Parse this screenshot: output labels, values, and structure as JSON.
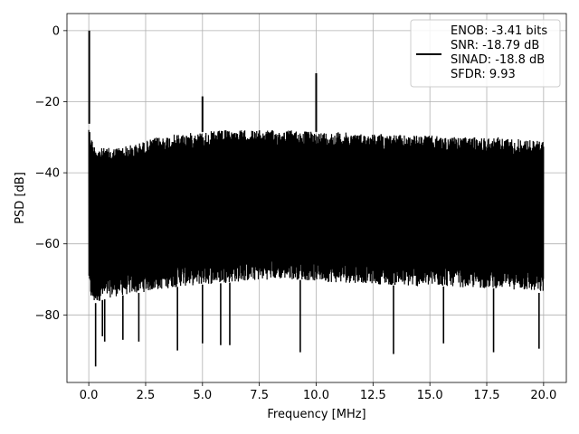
{
  "chart_data": {
    "type": "line",
    "title": "",
    "xlabel": "Frequency [MHz]",
    "ylabel": "PSD [dB]",
    "xlim": [
      -0.96,
      21.0
    ],
    "ylim": [
      -99.0,
      4.8
    ],
    "xticks": [
      0.0,
      2.5,
      5.0,
      7.5,
      10.0,
      12.5,
      15.0,
      17.5,
      20.0
    ],
    "xtick_labels": [
      "0.0",
      "2.5",
      "5.0",
      "7.5",
      "10.0",
      "12.5",
      "15.0",
      "17.5",
      "20.0"
    ],
    "yticks": [
      0,
      -20,
      -40,
      -60,
      -80
    ],
    "ytick_labels": [
      "0",
      "−20",
      "−40",
      "−60",
      "−80"
    ],
    "grid": true,
    "legend_position": "top-right",
    "series": [
      {
        "legend_lines": [
          "ENOB: -3.41 bits",
          "SNR: -18.79 dB",
          "SINAD: -18.8 dB",
          "SFDR: 9.93"
        ],
        "color": "#000000",
        "description": "dense noise floor",
        "envelope": {
          "x": [
            0.0,
            0.05,
            0.2,
            0.5,
            1.0,
            2.0,
            3.0,
            4.0,
            5.0,
            6.0,
            7.0,
            8.0,
            9.0,
            10.0,
            11.0,
            12.0,
            13.0,
            14.0,
            15.0,
            16.0,
            17.0,
            18.0,
            19.0,
            20.0
          ],
          "upper": [
            -25,
            -28,
            -32,
            -33,
            -33,
            -32,
            -30,
            -29,
            -28.5,
            -28,
            -28,
            -28,
            -28,
            -28.5,
            -28.5,
            -29,
            -29,
            -29.5,
            -29.5,
            -30,
            -30,
            -30,
            -30.5,
            -31
          ],
          "lower": [
            -70,
            -75,
            -77,
            -76,
            -75,
            -74,
            -73,
            -72,
            -71.5,
            -71,
            -70.5,
            -70,
            -70,
            -70.5,
            -71,
            -71,
            -71.5,
            -72,
            -72,
            -72,
            -72.5,
            -72.5,
            -73,
            -74
          ]
        },
        "peaks": [
          {
            "x": 0.02,
            "y": 0.0
          },
          {
            "x": 5.0,
            "y": -18.5
          },
          {
            "x": 10.0,
            "y": -12.0
          }
        ],
        "deep_dips": [
          {
            "x": 0.3,
            "y": -94.5
          },
          {
            "x": 0.6,
            "y": -86.0
          },
          {
            "x": 0.7,
            "y": -87.5
          },
          {
            "x": 1.5,
            "y": -87.0
          },
          {
            "x": 2.2,
            "y": -87.5
          },
          {
            "x": 3.9,
            "y": -90.0
          },
          {
            "x": 5.0,
            "y": -88.0
          },
          {
            "x": 5.8,
            "y": -88.5
          },
          {
            "x": 6.2,
            "y": -88.5
          },
          {
            "x": 9.3,
            "y": -90.5
          },
          {
            "x": 13.4,
            "y": -91.0
          },
          {
            "x": 15.6,
            "y": -88.0
          },
          {
            "x": 17.8,
            "y": -90.5
          },
          {
            "x": 19.8,
            "y": -89.5
          }
        ]
      }
    ]
  }
}
